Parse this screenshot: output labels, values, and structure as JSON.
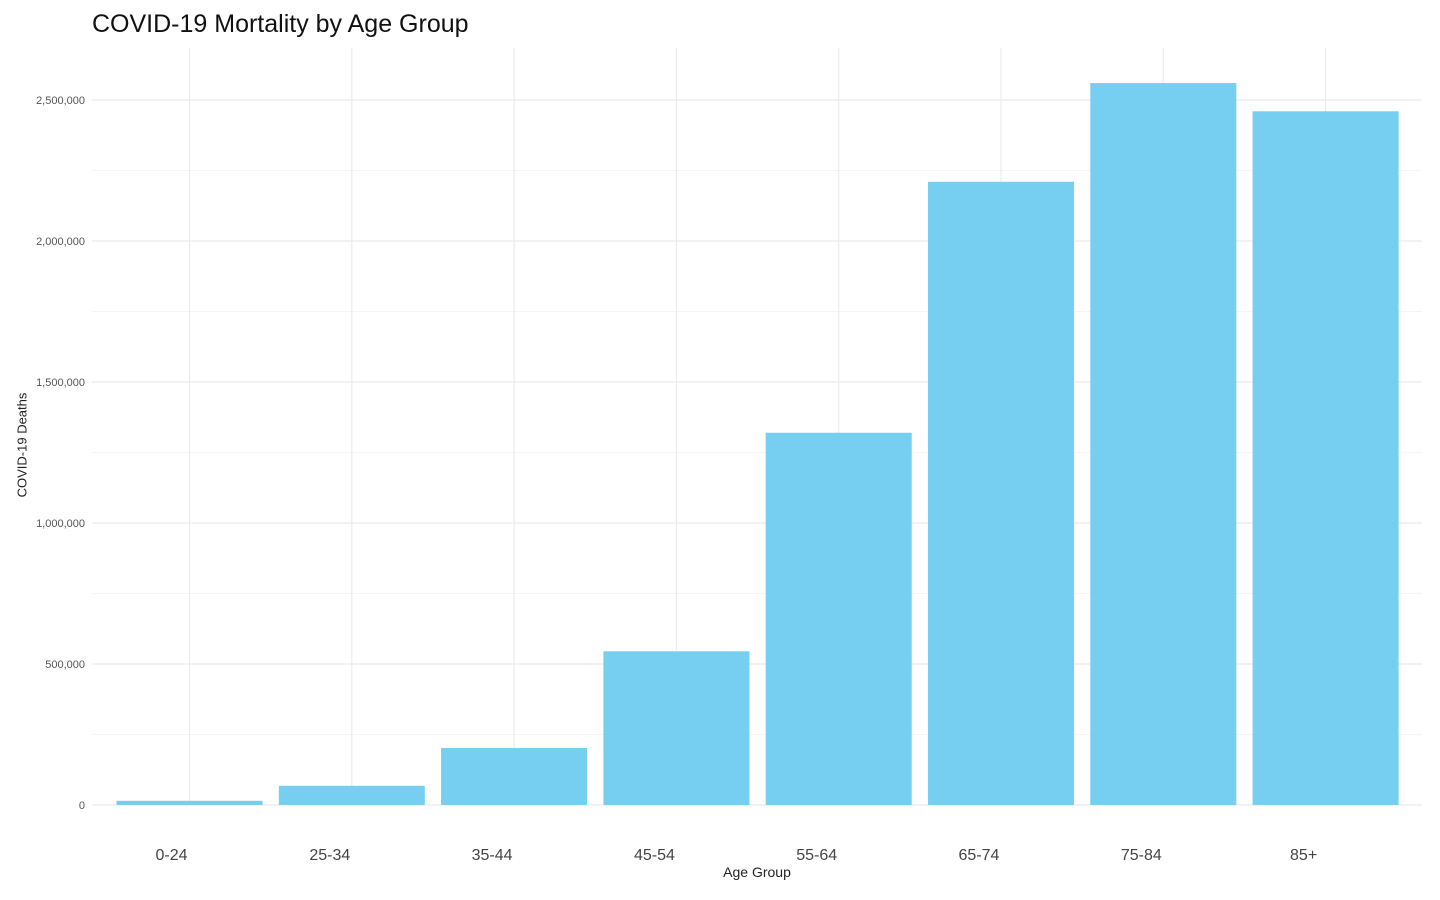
{
  "chart_data": {
    "type": "bar",
    "title": "COVID-19 Mortality by Age Group",
    "xlabel": "Age Group",
    "ylabel": "COVID-19 Deaths",
    "categories": [
      "0-24",
      "25-34",
      "35-44",
      "45-54",
      "55-64",
      "65-74",
      "75-84",
      "85+"
    ],
    "values": [
      15000,
      68000,
      202000,
      545000,
      1320000,
      2210000,
      2560000,
      2460000
    ],
    "ylim": [
      0,
      2650000
    ],
    "y_ticks": [
      0,
      500000,
      1000000,
      1500000,
      2000000,
      2500000
    ],
    "y_tick_labels": [
      "0",
      "500,000",
      "1,000,000",
      "1,500,000",
      "2,000,000",
      "2,500,000"
    ],
    "grid": true,
    "bar_color": "#76CEF0",
    "grid_color": "#EBEBEB"
  }
}
